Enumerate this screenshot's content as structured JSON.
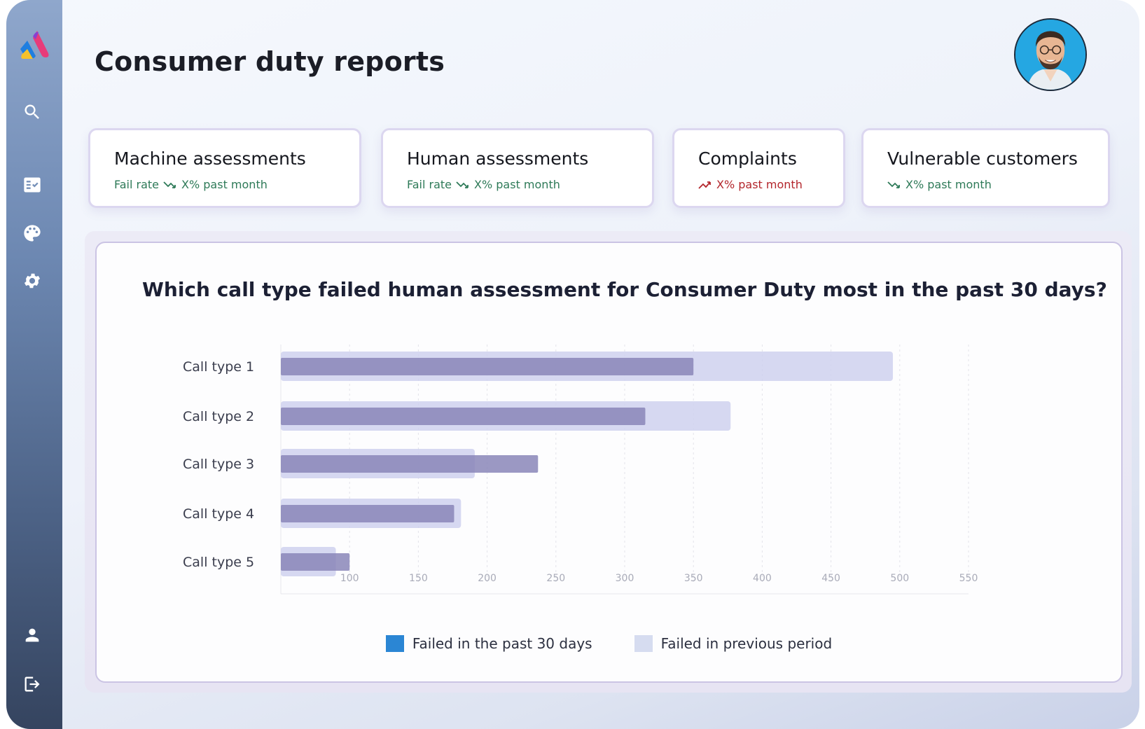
{
  "page": {
    "title": "Consumer duty reports"
  },
  "sidebar": {
    "items": [
      {
        "name": "search-icon"
      },
      {
        "name": "checklist-icon"
      },
      {
        "name": "palette-icon"
      },
      {
        "name": "gear-icon"
      },
      {
        "name": "user-icon"
      },
      {
        "name": "logout-icon"
      }
    ]
  },
  "kpis": [
    {
      "title": "Machine assessments",
      "prefix": "Fail rate",
      "change": "X% past month",
      "trend": "down"
    },
    {
      "title": "Human assessments",
      "prefix": "Fail rate",
      "change": "X% past month",
      "trend": "down"
    },
    {
      "title": "Complaints",
      "prefix": "",
      "change": "X% past month",
      "trend": "up"
    },
    {
      "title": "Vulnerable customers",
      "prefix": "",
      "change": "X% past month",
      "trend": "down"
    }
  ],
  "colors": {
    "current_series": "#8a86b8",
    "previous_series": "#cfd1ee",
    "legend_current": "#2b86d4",
    "legend_previous": "#d6dcf0",
    "trend_down": "#2e7a58",
    "trend_up": "#b3262c"
  },
  "chart_data": {
    "type": "bar",
    "orientation": "horizontal",
    "title": "Which call type failed human assessment for Consumer Duty most in the past 30 days?",
    "categories": [
      "Call type 1",
      "Call type 2",
      "Call type 3",
      "Call type 4",
      "Call type 5"
    ],
    "series": [
      {
        "name": "Failed in the past 30 days",
        "values": [
          350,
          315,
          237,
          176,
          100
        ]
      },
      {
        "name": "Failed in previous period",
        "values": [
          495,
          377,
          191,
          181,
          90
        ]
      }
    ],
    "x_ticks": [
      "100",
      "150",
      "200",
      "250",
      "300",
      "350",
      "400",
      "450",
      "500",
      "550"
    ],
    "xlim": [
      50,
      550
    ],
    "grid": true,
    "legend": "bottom"
  }
}
